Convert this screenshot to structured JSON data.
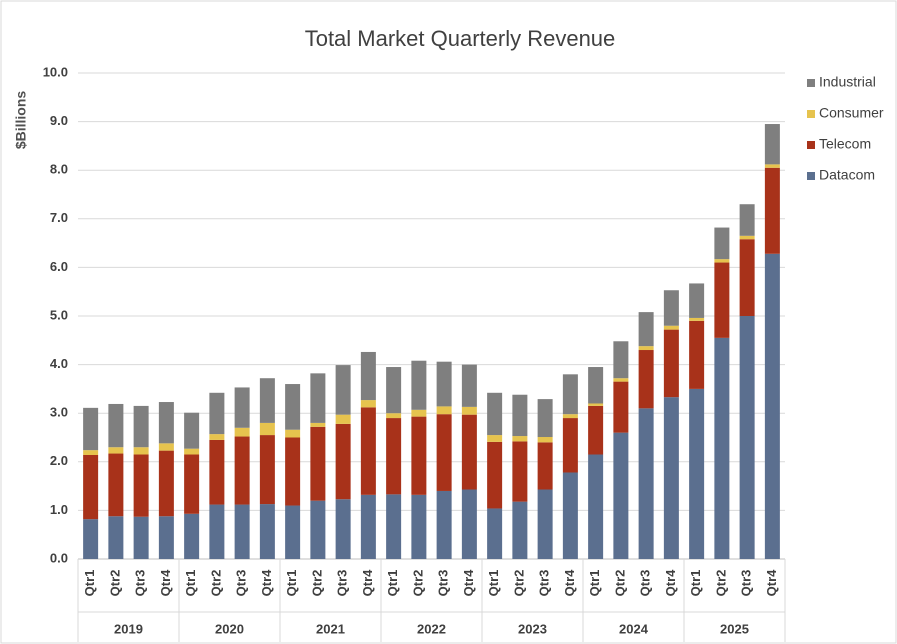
{
  "chart_data": {
    "type": "stacked-bar",
    "title": "Total Market Quarterly Revenue",
    "y_label": "$Billions",
    "categories": [
      "Qtr1",
      "Qtr2",
      "Qtr3",
      "Qtr4",
      "Qtr1",
      "Qtr2",
      "Qtr3",
      "Qtr4",
      "Qtr1",
      "Qtr2",
      "Qtr3",
      "Qtr4",
      "Qtr1",
      "Qtr2",
      "Qtr3",
      "Qtr4",
      "Qtr1",
      "Qtr2",
      "Qtr3",
      "Qtr4",
      "Qtr1",
      "Qtr2",
      "Qtr3",
      "Qtr4",
      "Qtr1",
      "Qtr2",
      "Qtr3",
      "Qtr4"
    ],
    "years": [
      "2019",
      "2020",
      "2021",
      "2022",
      "2023",
      "2024",
      "2025"
    ],
    "series": [
      {
        "name": "Datacom",
        "color": "#5b6f8f",
        "values": [
          0.82,
          0.88,
          0.87,
          0.88,
          0.93,
          1.12,
          1.12,
          1.13,
          1.1,
          1.2,
          1.23,
          1.32,
          1.33,
          1.32,
          1.4,
          1.43,
          1.04,
          1.18,
          1.43,
          1.78,
          2.15,
          2.6,
          3.1,
          3.33,
          3.5,
          4.55,
          5.0,
          6.28
        ]
      },
      {
        "name": "Telecom",
        "color": "#a8321a",
        "values": [
          1.32,
          1.29,
          1.28,
          1.35,
          1.22,
          1.33,
          1.4,
          1.42,
          1.4,
          1.52,
          1.55,
          1.8,
          1.57,
          1.61,
          1.58,
          1.54,
          1.37,
          1.24,
          0.97,
          1.12,
          1.0,
          1.05,
          1.2,
          1.39,
          1.4,
          1.55,
          1.58,
          1.77
        ]
      },
      {
        "name": "Consumer",
        "color": "#e6c34e",
        "values": [
          0.1,
          0.13,
          0.15,
          0.15,
          0.12,
          0.12,
          0.18,
          0.25,
          0.16,
          0.08,
          0.19,
          0.15,
          0.1,
          0.14,
          0.16,
          0.16,
          0.14,
          0.11,
          0.11,
          0.08,
          0.05,
          0.07,
          0.08,
          0.08,
          0.06,
          0.07,
          0.07,
          0.07
        ]
      },
      {
        "name": "Industrial",
        "color": "#7f7f7f",
        "values": [
          0.87,
          0.89,
          0.85,
          0.85,
          0.74,
          0.85,
          0.83,
          0.92,
          0.94,
          1.02,
          1.02,
          0.99,
          0.95,
          1.01,
          0.92,
          0.87,
          0.87,
          0.85,
          0.78,
          0.82,
          0.75,
          0.76,
          0.7,
          0.73,
          0.71,
          0.65,
          0.65,
          0.83
        ]
      }
    ],
    "ylim": [
      0,
      10
    ],
    "yticks": [
      {
        "value": 0,
        "label": "0.0"
      },
      {
        "value": 1,
        "label": "1.0"
      },
      {
        "value": 2,
        "label": "2.0"
      },
      {
        "value": 3,
        "label": "3.0"
      },
      {
        "value": 4,
        "label": "4.0"
      },
      {
        "value": 5,
        "label": "5.0"
      },
      {
        "value": 6,
        "label": "6.0"
      },
      {
        "value": 7,
        "label": "7.0"
      },
      {
        "value": 8,
        "label": "8.0"
      },
      {
        "value": 9,
        "label": "9.0"
      },
      {
        "value": 10,
        "label": "10.0"
      }
    ],
    "grid": true,
    "legend": "right"
  }
}
